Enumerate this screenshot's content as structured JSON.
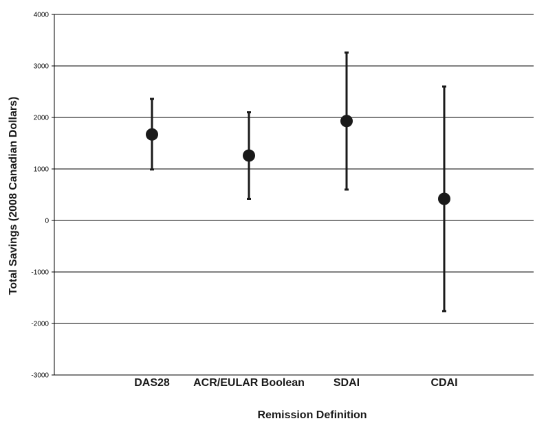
{
  "chart_data": {
    "type": "scatter",
    "title": "",
    "xlabel": "Remission Definition",
    "ylabel": "Total Savings (2008 Canadian Dollars)",
    "ylim": [
      -3000,
      4000
    ],
    "yticks": [
      4000,
      3000,
      2000,
      1000,
      0,
      -1000,
      -2000,
      -3000
    ],
    "grid": true,
    "legend": "none",
    "categories": [
      "DAS28",
      "ACR/EULAR Boolean",
      "SDAI",
      "CDAI"
    ],
    "series": [
      {
        "values": [
          1670,
          1260,
          1930,
          420
        ],
        "lower": [
          990,
          420,
          600,
          -1760
        ],
        "upper": [
          2360,
          2100,
          3260,
          2600
        ]
      }
    ],
    "colors": {
      "marker": "#1a1a1a",
      "grid": "#000000"
    }
  }
}
